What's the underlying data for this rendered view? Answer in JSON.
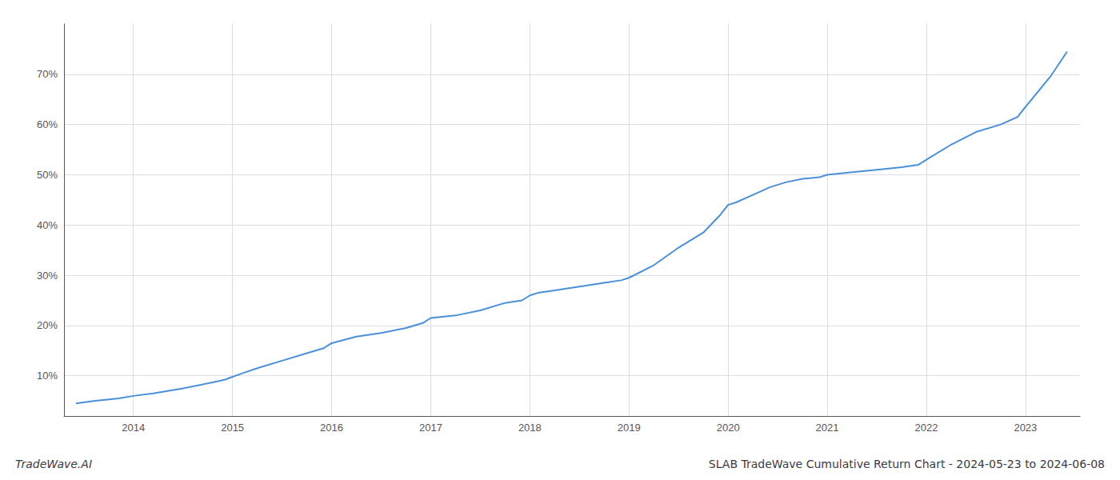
{
  "chart_data": {
    "type": "line",
    "title": "SLAB TradeWave Cumulative Return Chart - 2024-05-23 to 2024-06-08",
    "annotations": [
      "TradeWave.AI"
    ],
    "color": "#4a90d9",
    "grid": true,
    "x": [
      2013.42,
      2013.6,
      2013.85,
      2014.0,
      2014.2,
      2014.5,
      2014.75,
      2014.92,
      2015.0,
      2015.1,
      2015.25,
      2015.5,
      2015.75,
      2015.92,
      2016.0,
      2016.25,
      2016.5,
      2016.75,
      2016.92,
      2017.0,
      2017.25,
      2017.5,
      2017.75,
      2017.92,
      2018.0,
      2018.08,
      2018.25,
      2018.42,
      2018.58,
      2018.75,
      2018.92,
      2019.0,
      2019.25,
      2019.5,
      2019.75,
      2019.92,
      2020.0,
      2020.08,
      2020.25,
      2020.42,
      2020.58,
      2020.75,
      2020.92,
      2021.0,
      2021.25,
      2021.5,
      2021.75,
      2021.92,
      2022.0,
      2022.25,
      2022.5,
      2022.75,
      2022.92,
      2023.0,
      2023.25,
      2023.42
    ],
    "values": [
      4.5,
      5.0,
      5.5,
      6.0,
      6.5,
      7.5,
      8.5,
      9.2,
      9.8,
      10.5,
      11.5,
      13.0,
      14.5,
      15.5,
      16.5,
      17.8,
      18.5,
      19.5,
      20.5,
      21.5,
      22.0,
      23.0,
      24.5,
      25.0,
      26.0,
      26.5,
      27.0,
      27.5,
      28.0,
      28.5,
      29.0,
      29.5,
      32.0,
      35.5,
      38.5,
      42.0,
      44.0,
      44.5,
      46.0,
      47.5,
      48.5,
      49.2,
      49.5,
      50.0,
      50.5,
      51.0,
      51.5,
      52.0,
      53.0,
      56.0,
      58.5,
      60.0,
      61.5,
      63.5,
      69.5,
      74.5
    ],
    "xlim": [
      2013.3,
      2023.55
    ],
    "ylim": [
      2,
      80
    ],
    "xticks": [
      2014,
      2015,
      2016,
      2017,
      2018,
      2019,
      2020,
      2021,
      2022,
      2023
    ],
    "yticks": [
      {
        "value": 10,
        "label": "10%"
      },
      {
        "value": 20,
        "label": "20%"
      },
      {
        "value": 30,
        "label": "30%"
      },
      {
        "value": 40,
        "label": "40%"
      },
      {
        "value": 50,
        "label": "50%"
      },
      {
        "value": 60,
        "label": "60%"
      },
      {
        "value": 70,
        "label": "70%"
      }
    ]
  }
}
